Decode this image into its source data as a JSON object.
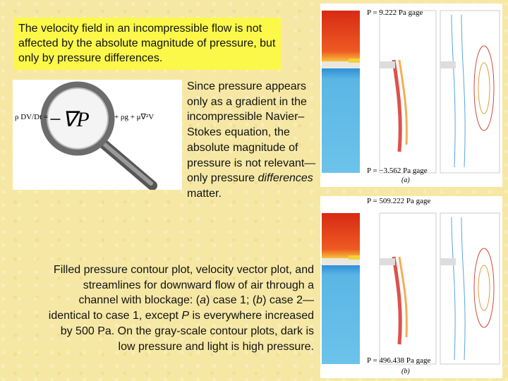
{
  "callout": {
    "text": "The velocity field in an incompressible flow is not affected by the absolute magnitude of pressure, but only by pressure differences."
  },
  "equation": {
    "lhs": "ρ DV/Dt =",
    "grad_p": "−∇P",
    "rhs": "+ ρg + μ∇²V"
  },
  "side_text": {
    "part1": "Since pressure appears only as a gradient in the incompressible Navier–Stokes equation, the absolute magnitude of pressure is not relevant—only pressure ",
    "emphasis": "differences",
    "part2": " matter."
  },
  "caption": {
    "t1": "Filled pressure contour plot, velocity vector plot, and streamlines for downward flow of air through a channel with blockage: (",
    "a": "a",
    "t2": ") case 1; (",
    "b": "b",
    "t3": ") case 2—identical to case 1, except ",
    "p": "P",
    "t4": " is everywhere increased by 500 Pa. On the gray-scale contour plots, dark is low pressure and light is high pressure."
  },
  "figure_a": {
    "top_label": "P = 9.222 Pa gage",
    "bottom_label": "P = −3.562 Pa gage",
    "tag": "(a)"
  },
  "figure_b": {
    "top_label": "P = 509.222 Pa gage",
    "bottom_label": "P = 496.438 Pa gage",
    "tag": "(b)"
  },
  "colors": {
    "callout_bg": "#fbf84a",
    "page_bg": "#f6e8a4",
    "high_pressure": "#e03a1c",
    "low_pressure": "#5bb6e4"
  }
}
